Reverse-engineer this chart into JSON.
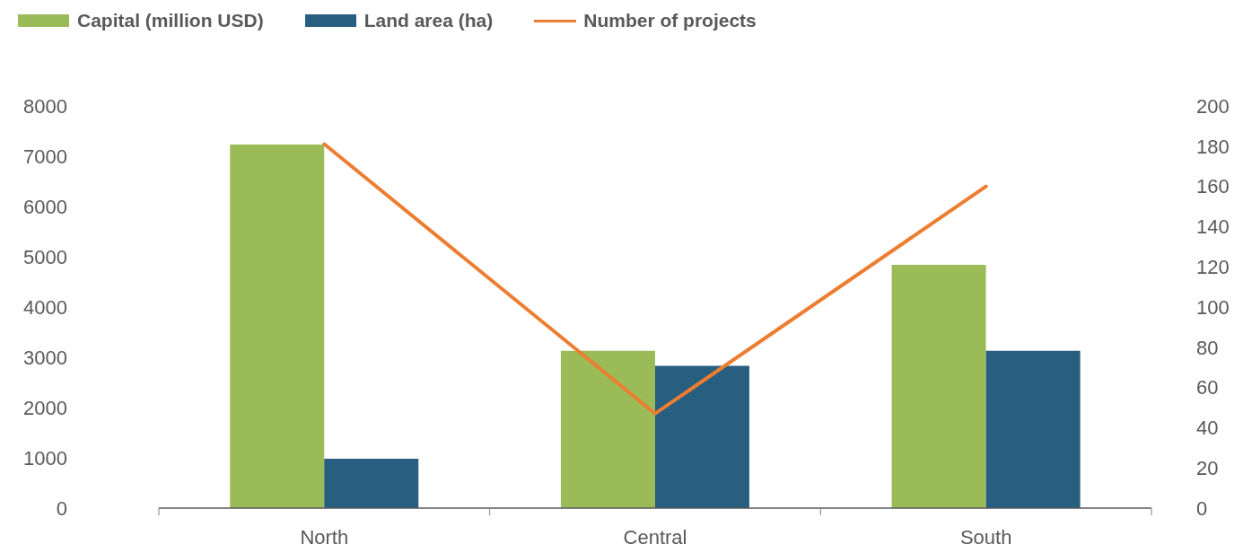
{
  "chart_data": {
    "type": "bar",
    "categories": [
      "North",
      "Central",
      "South"
    ],
    "series": [
      {
        "name": "Capital (million USD)",
        "color": "#9bbb59",
        "values": [
          7230,
          3130,
          4840
        ]
      },
      {
        "name": "Land area (ha)",
        "color": "#285e7f",
        "values": [
          980,
          2830,
          3130
        ]
      },
      {
        "name": "Number of projects",
        "type": "line",
        "axis": "y2",
        "color": "#ed7d31",
        "values": [
          181,
          47,
          160
        ]
      }
    ],
    "ylim": [
      0,
      8000
    ],
    "yticks": [
      0,
      1000,
      2000,
      3000,
      4000,
      5000,
      6000,
      7000,
      8000
    ],
    "y2lim": [
      0,
      200
    ],
    "y2ticks": [
      0,
      20,
      40,
      60,
      80,
      100,
      120,
      140,
      160,
      180,
      200
    ],
    "legend": "top left",
    "marker": "none"
  }
}
